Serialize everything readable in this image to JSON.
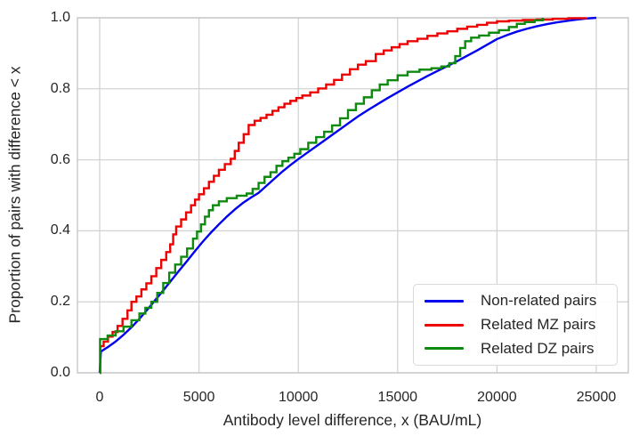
{
  "chart_data": {
    "type": "line",
    "subtype": "ecdf",
    "title": "",
    "xlabel": "Antibody level difference, x (BAU/mL)",
    "ylabel": "Proportion of pairs with difference < x",
    "x_axis": {
      "min": 0,
      "max": 25000
    },
    "y_axis": {
      "min": 0.0,
      "max": 1.0
    },
    "x_ticks": {
      "values": [
        0,
        5000,
        10000,
        15000,
        20000,
        25000
      ],
      "labels": [
        "0",
        "5000",
        "10000",
        "15000",
        "20000",
        "25000"
      ]
    },
    "y_ticks": {
      "values": [
        0.0,
        0.2,
        0.4,
        0.6,
        0.8,
        1.0
      ],
      "labels": [
        "0.0",
        "0.2",
        "0.4",
        "0.6",
        "0.8",
        "1.0"
      ]
    },
    "grid": true,
    "legend_position": "lower right",
    "colors": {
      "grid": "#d2d2d2",
      "spine": "#c3c3c3",
      "text": "#262626",
      "background": "#ffffff"
    },
    "series": [
      {
        "name": "Non-related pairs",
        "color": "#0000ee",
        "step": false,
        "points": [
          [
            0,
            0
          ],
          [
            60,
            0.06
          ],
          [
            400,
            0.072
          ],
          [
            800,
            0.088
          ],
          [
            1200,
            0.107
          ],
          [
            1600,
            0.128
          ],
          [
            2000,
            0.152
          ],
          [
            2400,
            0.178
          ],
          [
            2800,
            0.205
          ],
          [
            3200,
            0.232
          ],
          [
            3600,
            0.26
          ],
          [
            4000,
            0.288
          ],
          [
            4400,
            0.315
          ],
          [
            4800,
            0.343
          ],
          [
            5200,
            0.37
          ],
          [
            5600,
            0.395
          ],
          [
            6000,
            0.418
          ],
          [
            6400,
            0.44
          ],
          [
            6800,
            0.46
          ],
          [
            7200,
            0.478
          ],
          [
            7600,
            0.493
          ],
          [
            8000,
            0.507
          ],
          [
            8400,
            0.527
          ],
          [
            8800,
            0.547
          ],
          [
            9200,
            0.567
          ],
          [
            9600,
            0.585
          ],
          [
            10000,
            0.602
          ],
          [
            10500,
            0.622
          ],
          [
            11000,
            0.642
          ],
          [
            11500,
            0.662
          ],
          [
            12000,
            0.682
          ],
          [
            12500,
            0.702
          ],
          [
            13000,
            0.722
          ],
          [
            13500,
            0.74
          ],
          [
            14000,
            0.757
          ],
          [
            14500,
            0.774
          ],
          [
            15000,
            0.79
          ],
          [
            15500,
            0.806
          ],
          [
            16000,
            0.821
          ],
          [
            16500,
            0.836
          ],
          [
            17000,
            0.85
          ],
          [
            17500,
            0.864
          ],
          [
            18000,
            0.878
          ],
          [
            18500,
            0.893
          ],
          [
            19000,
            0.908
          ],
          [
            19500,
            0.924
          ],
          [
            20000,
            0.94
          ],
          [
            20500,
            0.951
          ],
          [
            21000,
            0.961
          ],
          [
            21500,
            0.969
          ],
          [
            22000,
            0.976
          ],
          [
            22500,
            0.982
          ],
          [
            23000,
            0.987
          ],
          [
            23500,
            0.991
          ],
          [
            24000,
            0.995
          ],
          [
            24500,
            0.998
          ],
          [
            25000,
            1.0
          ]
        ]
      },
      {
        "name": "Related MZ pairs",
        "color": "#ee0000",
        "step": true,
        "points": [
          [
            0,
            0
          ],
          [
            30,
            0.075
          ],
          [
            200,
            0.088
          ],
          [
            420,
            0.102
          ],
          [
            650,
            0.115
          ],
          [
            900,
            0.132
          ],
          [
            1150,
            0.152
          ],
          [
            1400,
            0.176
          ],
          [
            1600,
            0.2
          ],
          [
            1850,
            0.215
          ],
          [
            2100,
            0.235
          ],
          [
            2350,
            0.252
          ],
          [
            2600,
            0.272
          ],
          [
            2850,
            0.295
          ],
          [
            3100,
            0.318
          ],
          [
            3350,
            0.34
          ],
          [
            3550,
            0.362
          ],
          [
            3700,
            0.39
          ],
          [
            3850,
            0.412
          ],
          [
            4100,
            0.432
          ],
          [
            4350,
            0.452
          ],
          [
            4600,
            0.472
          ],
          [
            4800,
            0.488
          ],
          [
            5000,
            0.503
          ],
          [
            5250,
            0.52
          ],
          [
            5500,
            0.538
          ],
          [
            5750,
            0.555
          ],
          [
            6000,
            0.572
          ],
          [
            6300,
            0.588
          ],
          [
            6600,
            0.603
          ],
          [
            6800,
            0.625
          ],
          [
            7000,
            0.648
          ],
          [
            7250,
            0.672
          ],
          [
            7500,
            0.698
          ],
          [
            7800,
            0.71
          ],
          [
            8100,
            0.718
          ],
          [
            8400,
            0.727
          ],
          [
            8700,
            0.738
          ],
          [
            9000,
            0.748
          ],
          [
            9300,
            0.758
          ],
          [
            9600,
            0.766
          ],
          [
            9900,
            0.774
          ],
          [
            10200,
            0.781
          ],
          [
            10600,
            0.79
          ],
          [
            11000,
            0.801
          ],
          [
            11400,
            0.812
          ],
          [
            11800,
            0.825
          ],
          [
            12200,
            0.84
          ],
          [
            12600,
            0.855
          ],
          [
            13000,
            0.868
          ],
          [
            13400,
            0.878
          ],
          [
            13900,
            0.898
          ],
          [
            14300,
            0.908
          ],
          [
            14700,
            0.917
          ],
          [
            15100,
            0.926
          ],
          [
            15500,
            0.934
          ],
          [
            16000,
            0.941
          ],
          [
            16500,
            0.949
          ],
          [
            17000,
            0.956
          ],
          [
            17500,
            0.962
          ],
          [
            18000,
            0.969
          ],
          [
            18500,
            0.975
          ],
          [
            19000,
            0.98
          ],
          [
            19500,
            0.986
          ],
          [
            20000,
            0.99
          ],
          [
            20600,
            0.992
          ],
          [
            21300,
            0.994
          ],
          [
            22000,
            0.995
          ],
          [
            22800,
            0.997
          ],
          [
            23600,
            0.999
          ],
          [
            24500,
            1.0
          ]
        ]
      },
      {
        "name": "Related DZ pairs",
        "color": "#0e8a0e",
        "step": true,
        "points": [
          [
            0,
            0
          ],
          [
            20,
            0.095
          ],
          [
            400,
            0.105
          ],
          [
            800,
            0.117
          ],
          [
            1200,
            0.13
          ],
          [
            1600,
            0.148
          ],
          [
            2000,
            0.167
          ],
          [
            2300,
            0.183
          ],
          [
            2600,
            0.2
          ],
          [
            2900,
            0.225
          ],
          [
            3200,
            0.253
          ],
          [
            3500,
            0.282
          ],
          [
            3800,
            0.305
          ],
          [
            4100,
            0.327
          ],
          [
            4400,
            0.35
          ],
          [
            4700,
            0.378
          ],
          [
            4900,
            0.398
          ],
          [
            5100,
            0.418
          ],
          [
            5300,
            0.44
          ],
          [
            5500,
            0.458
          ],
          [
            5700,
            0.472
          ],
          [
            6000,
            0.483
          ],
          [
            6400,
            0.492
          ],
          [
            6900,
            0.499
          ],
          [
            7400,
            0.505
          ],
          [
            7700,
            0.518
          ],
          [
            8000,
            0.535
          ],
          [
            8300,
            0.552
          ],
          [
            8600,
            0.565
          ],
          [
            8900,
            0.583
          ],
          [
            9200,
            0.596
          ],
          [
            9500,
            0.606
          ],
          [
            9800,
            0.617
          ],
          [
            10100,
            0.63
          ],
          [
            10500,
            0.648
          ],
          [
            10900,
            0.664
          ],
          [
            11300,
            0.679
          ],
          [
            11700,
            0.697
          ],
          [
            12100,
            0.717
          ],
          [
            12500,
            0.74
          ],
          [
            12900,
            0.758
          ],
          [
            13300,
            0.776
          ],
          [
            13700,
            0.796
          ],
          [
            14100,
            0.812
          ],
          [
            14500,
            0.824
          ],
          [
            15000,
            0.838
          ],
          [
            15500,
            0.848
          ],
          [
            16100,
            0.854
          ],
          [
            16700,
            0.858
          ],
          [
            17200,
            0.863
          ],
          [
            17600,
            0.872
          ],
          [
            17900,
            0.892
          ],
          [
            18150,
            0.915
          ],
          [
            18400,
            0.934
          ],
          [
            18700,
            0.944
          ],
          [
            19100,
            0.95
          ],
          [
            19600,
            0.958
          ],
          [
            20100,
            0.965
          ],
          [
            20600,
            0.974
          ],
          [
            21000,
            0.983
          ],
          [
            21400,
            0.988
          ],
          [
            21900,
            0.993
          ],
          [
            22300,
            1.0
          ]
        ]
      }
    ]
  }
}
